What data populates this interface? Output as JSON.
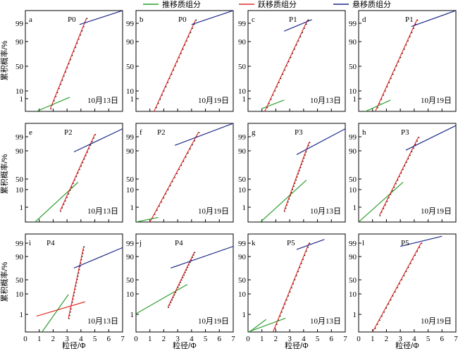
{
  "legend": {
    "entries": [
      {
        "label": "推移质组分",
        "color": "#2e9e2e"
      },
      {
        "label": "跃移质组分",
        "color": "#e0302a"
      },
      {
        "label": "悬移质组分",
        "color": "#1f2a8a"
      }
    ]
  },
  "y_axis_title": "累积概率/%",
  "x_axis_title": "粒径/Φ",
  "colors": {
    "traction": "#2e9e2e",
    "saltation": "#e0302a",
    "suspension": "#1f2a8a",
    "data": "#000000"
  },
  "chart_data": {
    "type": "line",
    "note_scale": "probability",
    "x_ticks": [
      0,
      1,
      2,
      3,
      4,
      5,
      6,
      7
    ],
    "y_ticks": [
      1,
      10,
      50,
      90,
      99
    ],
    "xlim": [
      0,
      7
    ],
    "ylim": [
      0.3,
      99.97
    ],
    "panels": [
      {
        "letter": "a",
        "site": "P0",
        "date": "10月13日",
        "traction": [
          [
            0.8,
            0.3
          ],
          [
            3.2,
            3.0
          ]
        ],
        "saltation": [
          [
            1.8,
            0.5
          ],
          [
            4.4,
            99.85
          ]
        ],
        "suspension": [
          [
            3.9,
            99.5
          ],
          [
            7.0,
            99.97
          ]
        ]
      },
      {
        "letter": "b",
        "site": "P0",
        "date": "10月19日",
        "traction": null,
        "saltation": [
          [
            1.3,
            0.3
          ],
          [
            4.3,
            99.8
          ]
        ],
        "suspension": [
          [
            4.0,
            99.5
          ],
          [
            7.0,
            99.97
          ]
        ]
      },
      {
        "letter": "c",
        "site": "P1",
        "date": "10月13日",
        "traction": [
          [
            1.0,
            0.5
          ],
          [
            2.6,
            2.0
          ]
        ],
        "saltation": [
          [
            1.2,
            0.3
          ],
          [
            4.3,
            99.8
          ]
        ],
        "suspension": [
          [
            2.6,
            98.5
          ],
          [
            4.6,
            99.8
          ]
        ]
      },
      {
        "letter": "d",
        "site": "P1",
        "date": "10月19日",
        "traction": [
          [
            0.5,
            0.3
          ],
          [
            2.3,
            2.0
          ]
        ],
        "saltation": [
          [
            1.2,
            0.3
          ],
          [
            4.2,
            99.8
          ]
        ],
        "suspension": [
          [
            3.8,
            99.3
          ],
          [
            7.0,
            99.97
          ]
        ]
      },
      {
        "letter": "e",
        "site": "P2",
        "date": "10月13日",
        "traction": [
          [
            0.7,
            0.3
          ],
          [
            3.8,
            40.0
          ]
        ],
        "saltation": [
          [
            2.5,
            2.0
          ],
          [
            5.0,
            99.7
          ]
        ],
        "suspension": [
          [
            3.5,
            95.0
          ],
          [
            7.0,
            99.9
          ]
        ]
      },
      {
        "letter": "f",
        "site": "P2",
        "date": "10月19日",
        "traction": [
          [
            0.0,
            0.3
          ],
          [
            1.6,
            0.7
          ]
        ],
        "saltation": [
          [
            1.0,
            0.3
          ],
          [
            4.5,
            99.8
          ]
        ],
        "suspension": [
          [
            2.8,
            98.0
          ],
          [
            7.0,
            99.97
          ]
        ]
      },
      {
        "letter": "g",
        "site": "P3",
        "date": "10月13日",
        "traction": [
          [
            0.9,
            0.3
          ],
          [
            4.2,
            45.0
          ]
        ],
        "saltation": [
          [
            2.6,
            2.0
          ],
          [
            4.4,
            98.8
          ]
        ],
        "suspension": [
          [
            3.5,
            93.0
          ],
          [
            7.0,
            99.9
          ]
        ]
      },
      {
        "letter": "h",
        "site": "P3",
        "date": "10月19日",
        "traction": [
          [
            0.0,
            0.3
          ],
          [
            3.2,
            40.0
          ]
        ],
        "saltation": [
          [
            1.5,
            1.0
          ],
          [
            4.3,
            99.5
          ]
        ],
        "suspension": [
          [
            3.4,
            96.0
          ],
          [
            7.0,
            99.95
          ]
        ]
      },
      {
        "letter": "i",
        "site": "P4",
        "date": "10月13日",
        "traction": [
          [
            1.2,
            0.3
          ],
          [
            3.1,
            35.0
          ]
        ],
        "saltation": [
          [
            3.1,
            3.0
          ],
          [
            4.2,
            99.6
          ]
        ],
        "suspension": [
          [
            3.5,
            90.0
          ],
          [
            7.0,
            99.5
          ]
        ],
        "extra": [
          [
            0.8,
            4.0
          ],
          [
            4.3,
            20.0
          ]
        ]
      },
      {
        "letter": "j",
        "site": "P4",
        "date": "10月19日",
        "traction": [
          [
            0.0,
            5.5
          ],
          [
            3.7,
            60.0
          ]
        ],
        "saltation": [
          [
            2.3,
            12.0
          ],
          [
            4.2,
            98.9
          ]
        ],
        "suspension": [
          [
            2.5,
            90.0
          ],
          [
            7.0,
            99.6
          ]
        ]
      },
      {
        "letter": "k",
        "site": "P5",
        "date": "10月13日",
        "traction": [
          [
            0.1,
            0.3
          ],
          [
            1.3,
            2.5
          ]
        ],
        "saltation": [
          [
            1.8,
            0.3
          ],
          [
            4.4,
            99.8
          ]
        ],
        "suspension": [
          [
            3.5,
            99.3
          ],
          [
            5.5,
            99.9
          ]
        ],
        "extra": [
          [
            0.0,
            0.3
          ],
          [
            2.7,
            3.0
          ]
        ]
      },
      {
        "letter": "l",
        "site": "P5",
        "date": "10月19日",
        "traction": null,
        "saltation": [
          [
            1.0,
            0.3
          ],
          [
            4.5,
            99.8
          ]
        ],
        "suspension": [
          [
            3.0,
            99.6
          ],
          [
            6.0,
            99.95
          ]
        ]
      }
    ]
  }
}
